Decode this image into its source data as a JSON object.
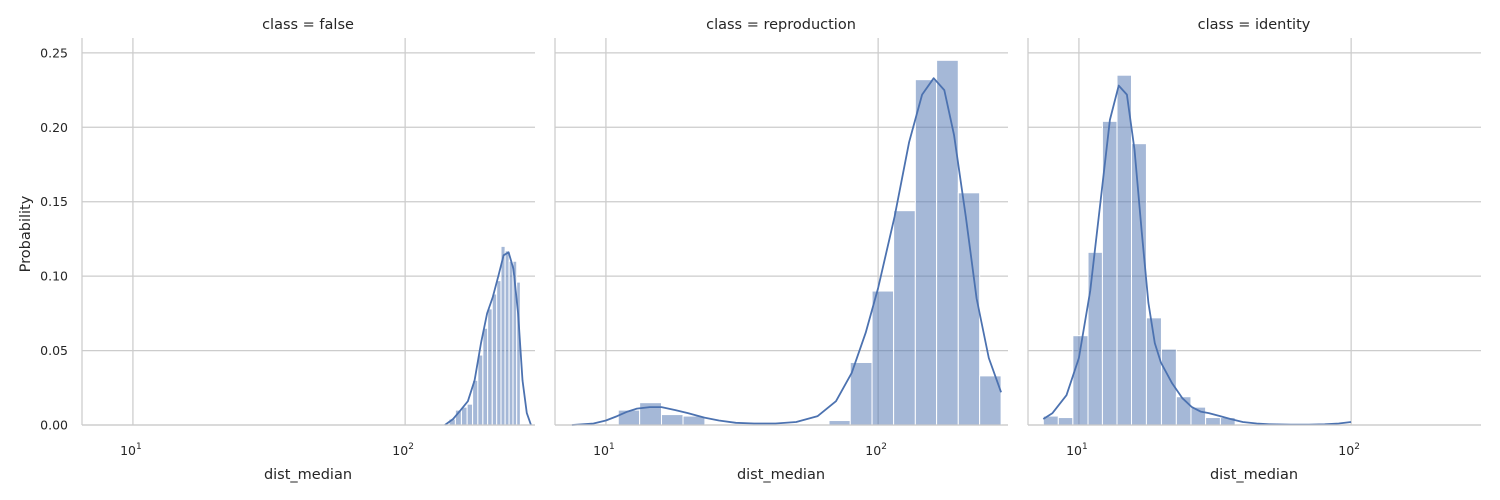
{
  "chart_data": {
    "type": "histogram",
    "style": {
      "bar_color": "#4c72b0",
      "bar_opacity": 0.5,
      "kde_color": "#4c72b0",
      "grid_color": "#cccccc",
      "grid": true,
      "x_scale": "log"
    },
    "ylabel": "Probability",
    "ylim": [
      0,
      0.26
    ],
    "y_ticks": [
      0.0,
      0.05,
      0.1,
      0.15,
      0.2,
      0.25
    ],
    "y_tick_labels": [
      "0.00",
      "0.05",
      "0.10",
      "0.15",
      "0.20",
      "0.25"
    ],
    "xlim": [
      6.5,
      300
    ],
    "x_ticks": [
      10,
      100
    ],
    "x_tick_labels": [
      "10¹",
      "10²"
    ],
    "panels": [
      {
        "title": "class = false",
        "xlabel": "dist_median",
        "bins": [
          {
            "x0": 145,
            "x1": 153,
            "height": 0.004
          },
          {
            "x0": 153,
            "x1": 161,
            "height": 0.01
          },
          {
            "x0": 161,
            "x1": 169,
            "height": 0.012
          },
          {
            "x0": 169,
            "x1": 177,
            "height": 0.014
          },
          {
            "x0": 177,
            "x1": 185,
            "height": 0.03
          },
          {
            "x0": 185,
            "x1": 193,
            "height": 0.047
          },
          {
            "x0": 193,
            "x1": 201,
            "height": 0.065
          },
          {
            "x0": 201,
            "x1": 209,
            "height": 0.078
          },
          {
            "x0": 209,
            "x1": 217,
            "height": 0.088
          },
          {
            "x0": 217,
            "x1": 225,
            "height": 0.097
          },
          {
            "x0": 225,
            "x1": 233,
            "height": 0.12
          },
          {
            "x0": 233,
            "x1": 241,
            "height": 0.117
          },
          {
            "x0": 241,
            "x1": 249,
            "height": 0.11
          },
          {
            "x0": 249,
            "x1": 257,
            "height": 0.11
          },
          {
            "x0": 257,
            "x1": 265,
            "height": 0.096
          }
        ],
        "kde": {
          "x": [
            140,
            150,
            160,
            170,
            180,
            190,
            200,
            210,
            220,
            230,
            240,
            250,
            260,
            270,
            280,
            290
          ],
          "y": [
            0.0,
            0.004,
            0.01,
            0.016,
            0.03,
            0.055,
            0.075,
            0.086,
            0.1,
            0.114,
            0.116,
            0.105,
            0.075,
            0.03,
            0.008,
            0.0
          ]
        }
      },
      {
        "title": "class = reproduction",
        "xlabel": "dist_median",
        "bins": [
          {
            "x0": 11.1,
            "x1": 13.3,
            "height": 0.01
          },
          {
            "x0": 13.3,
            "x1": 16.0,
            "height": 0.015
          },
          {
            "x0": 16.0,
            "x1": 19.2,
            "height": 0.007
          },
          {
            "x0": 19.2,
            "x1": 23.1,
            "height": 0.006
          },
          {
            "x0": 66.0,
            "x1": 79.0,
            "height": 0.003
          },
          {
            "x0": 79.0,
            "x1": 95.0,
            "height": 0.042
          },
          {
            "x0": 95.0,
            "x1": 114.0,
            "height": 0.09
          },
          {
            "x0": 114.0,
            "x1": 137.0,
            "height": 0.144
          },
          {
            "x0": 137.0,
            "x1": 164.0,
            "height": 0.232
          },
          {
            "x0": 164.0,
            "x1": 197.0,
            "height": 0.245
          },
          {
            "x0": 197.0,
            "x1": 236.0,
            "height": 0.156
          },
          {
            "x0": 236.0,
            "x1": 283.0,
            "height": 0.033
          }
        ],
        "kde": {
          "x": [
            7.5,
            9,
            10,
            11,
            12,
            13,
            14.5,
            16,
            18,
            20,
            23,
            26,
            30,
            35,
            42,
            50,
            60,
            70,
            80,
            90,
            100,
            115,
            130,
            145,
            160,
            175,
            190,
            210,
            230,
            255,
            283
          ],
          "y": [
            0.0,
            0.001,
            0.003,
            0.006,
            0.009,
            0.011,
            0.012,
            0.012,
            0.01,
            0.008,
            0.005,
            0.003,
            0.0015,
            0.001,
            0.001,
            0.002,
            0.006,
            0.016,
            0.035,
            0.062,
            0.092,
            0.14,
            0.19,
            0.222,
            0.233,
            0.225,
            0.195,
            0.14,
            0.085,
            0.045,
            0.022
          ]
        }
      },
      {
        "title": "class = identity",
        "xlabel": "dist_median",
        "bins": [
          {
            "x0": 7.4,
            "x1": 8.4,
            "height": 0.006
          },
          {
            "x0": 8.4,
            "x1": 9.5,
            "height": 0.005
          },
          {
            "x0": 9.5,
            "x1": 10.8,
            "height": 0.06
          },
          {
            "x0": 10.8,
            "x1": 12.2,
            "height": 0.116
          },
          {
            "x0": 12.2,
            "x1": 13.8,
            "height": 0.204
          },
          {
            "x0": 13.8,
            "x1": 15.6,
            "height": 0.235
          },
          {
            "x0": 15.6,
            "x1": 17.7,
            "height": 0.189
          },
          {
            "x0": 17.7,
            "x1": 20.1,
            "height": 0.072
          },
          {
            "x0": 20.1,
            "x1": 22.8,
            "height": 0.051
          },
          {
            "x0": 22.8,
            "x1": 25.8,
            "height": 0.019
          },
          {
            "x0": 25.8,
            "x1": 29.2,
            "height": 0.012
          },
          {
            "x0": 29.2,
            "x1": 33.1,
            "height": 0.005
          },
          {
            "x0": 33.1,
            "x1": 37.5,
            "height": 0.005
          }
        ],
        "kde": {
          "x": [
            7.4,
            8,
            9,
            10,
            11,
            12,
            13,
            14,
            15,
            16,
            17,
            18,
            19,
            20,
            22,
            24,
            26,
            28,
            30,
            33,
            36,
            40,
            45,
            50,
            60,
            70,
            80,
            90,
            100
          ],
          "y": [
            0.004,
            0.008,
            0.02,
            0.045,
            0.09,
            0.15,
            0.205,
            0.228,
            0.222,
            0.185,
            0.13,
            0.082,
            0.055,
            0.042,
            0.028,
            0.018,
            0.012,
            0.009,
            0.008,
            0.006,
            0.004,
            0.002,
            0.001,
            0.0005,
            0.0003,
            0.0003,
            0.0005,
            0.001,
            0.002
          ]
        }
      }
    ]
  }
}
